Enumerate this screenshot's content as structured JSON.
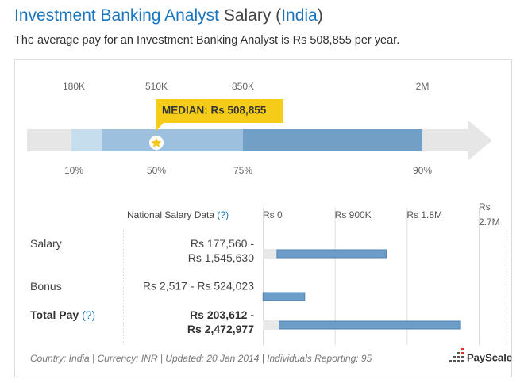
{
  "header": {
    "title_job": "Investment Banking Analyst",
    "title_mid": "Salary (",
    "title_country": "India",
    "title_end": ")",
    "subtitle": "The average pay for an Investment Banking Analyst is Rs 508,855 per year."
  },
  "percentile_chart": {
    "median_label": "MEDIAN: Rs 508,855",
    "amounts": [
      "180K",
      "510K",
      "850K",
      "2M"
    ],
    "percentiles": [
      "10%",
      "50%",
      "75%",
      "90%"
    ]
  },
  "table": {
    "header": "National Salary Data",
    "help": "(?)",
    "xlim": [
      0,
      2700000
    ],
    "xticks": [
      {
        "value": 0,
        "label": "Rs 0"
      },
      {
        "value": 900000,
        "label": "Rs 900K"
      },
      {
        "value": 1800000,
        "label": "Rs 1.8M"
      },
      {
        "value": 2700000,
        "label": "Rs 2.7M"
      }
    ],
    "rows": [
      {
        "label": "Salary",
        "range": "Rs 177,560 - Rs 1,545,630",
        "low": 177560,
        "high": 1545630
      },
      {
        "label": "Bonus",
        "range": "Rs 2,517 - Rs 524,023",
        "low": 2517,
        "high": 524023
      },
      {
        "label": "Total Pay",
        "help": "(?)",
        "range": "Rs 203,612 - Rs 2,472,977",
        "low": 203612,
        "high": 2472977,
        "bold": true
      }
    ]
  },
  "footer": {
    "text": "Country: India | Currency: INR | Updated: 20 Jan 2014 | Individuals Reporting: 95",
    "logo": "PayScale"
  }
}
